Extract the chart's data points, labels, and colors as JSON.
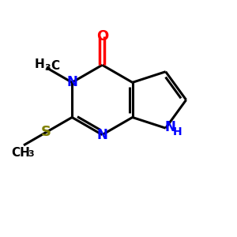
{
  "background_color": "#ffffff",
  "atom_colors": {
    "C": "#000000",
    "N": "#0000ff",
    "O": "#ff0000",
    "S": "#808000",
    "H": "#000000"
  },
  "bond_color": "#000000",
  "figsize": [
    3.0,
    3.0
  ],
  "dpi": 100
}
